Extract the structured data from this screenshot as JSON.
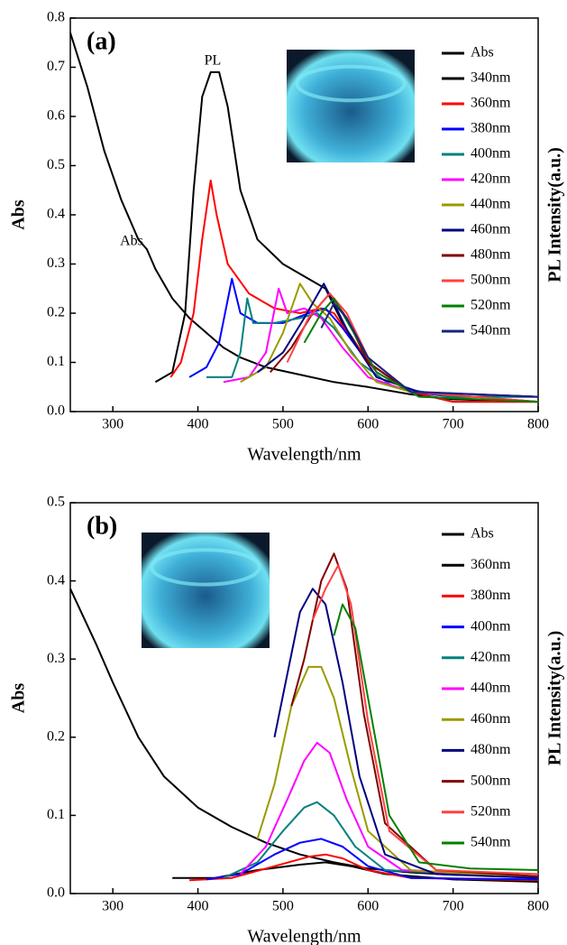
{
  "chart_data": [
    {
      "type": "line",
      "panel_label": "(a)",
      "xlabel": "Wavelength/nm",
      "ylabel": "Abs",
      "y2label": "PL Intensity(a.u.)",
      "annotations": [
        "PL",
        "Abs"
      ],
      "xlim": [
        250,
        800
      ],
      "xticks": [
        300,
        400,
        500,
        600,
        700,
        800
      ],
      "ylim": [
        0,
        0.8
      ],
      "yticks": [
        {
          "value": 0,
          "label": "0.0"
        },
        0.1,
        0.2,
        0.3,
        0.4,
        0.5,
        0.6,
        0.7,
        0.8
      ],
      "series": [
        {
          "name": "Abs",
          "color": "#000000",
          "x": [
            250,
            270,
            290,
            310,
            330,
            340,
            350,
            370,
            390,
            410,
            430,
            450,
            480,
            520,
            560,
            600,
            650,
            700,
            800
          ],
          "values": [
            0.77,
            0.66,
            0.53,
            0.43,
            0.35,
            0.33,
            0.29,
            0.23,
            0.19,
            0.16,
            0.13,
            0.11,
            0.09,
            0.075,
            0.06,
            0.05,
            0.035,
            0.025,
            0.02
          ]
        },
        {
          "name": "340nm",
          "color": "#000000",
          "x": [
            350,
            370,
            385,
            395,
            405,
            415,
            425,
            435,
            450,
            470,
            500,
            530,
            550,
            570,
            600,
            650,
            700,
            800
          ],
          "values": [
            0.06,
            0.08,
            0.2,
            0.45,
            0.64,
            0.69,
            0.69,
            0.62,
            0.45,
            0.35,
            0.3,
            0.27,
            0.25,
            0.18,
            0.1,
            0.04,
            0.02,
            0.02
          ]
        },
        {
          "name": "360nm",
          "color": "#ff0000",
          "x": [
            368,
            380,
            395,
            405,
            415,
            422,
            435,
            460,
            490,
            520,
            545,
            560,
            580,
            610,
            650,
            700,
            800
          ],
          "values": [
            0.07,
            0.1,
            0.2,
            0.35,
            0.47,
            0.4,
            0.3,
            0.24,
            0.21,
            0.2,
            0.21,
            0.2,
            0.15,
            0.08,
            0.04,
            0.02,
            0.02
          ]
        },
        {
          "name": "380nm",
          "color": "#0000ff",
          "x": [
            390,
            410,
            425,
            440,
            450,
            470,
            500,
            530,
            550,
            570,
            600,
            650,
            700,
            800
          ],
          "values": [
            0.07,
            0.09,
            0.14,
            0.27,
            0.2,
            0.18,
            0.18,
            0.2,
            0.21,
            0.17,
            0.1,
            0.04,
            0.03,
            0.03
          ]
        },
        {
          "name": "400nm",
          "color": "#008080",
          "x": [
            410,
            440,
            450,
            458,
            465,
            490,
            520,
            540,
            560,
            590,
            630,
            700,
            800
          ],
          "values": [
            0.07,
            0.07,
            0.12,
            0.23,
            0.18,
            0.18,
            0.19,
            0.2,
            0.17,
            0.1,
            0.05,
            0.03,
            0.03
          ]
        },
        {
          "name": "420nm",
          "color": "#ff00ff",
          "x": [
            430,
            460,
            480,
            495,
            505,
            525,
            545,
            570,
            600,
            650,
            800
          ],
          "values": [
            0.06,
            0.07,
            0.12,
            0.25,
            0.2,
            0.21,
            0.19,
            0.13,
            0.07,
            0.04,
            0.03
          ]
        },
        {
          "name": "440nm",
          "color": "#9a9a00",
          "x": [
            450,
            480,
            500,
            520,
            535,
            555,
            580,
            610,
            650,
            800
          ],
          "values": [
            0.06,
            0.09,
            0.16,
            0.26,
            0.22,
            0.19,
            0.12,
            0.06,
            0.04,
            0.03
          ]
        },
        {
          "name": "460nm",
          "color": "#000080",
          "x": [
            470,
            500,
            525,
            548,
            560,
            580,
            610,
            660,
            800
          ],
          "values": [
            0.08,
            0.12,
            0.19,
            0.26,
            0.22,
            0.15,
            0.07,
            0.04,
            0.03
          ]
        },
        {
          "name": "480nm",
          "color": "#800000",
          "x": [
            485,
            510,
            535,
            555,
            575,
            600,
            650,
            800
          ],
          "values": [
            0.08,
            0.13,
            0.2,
            0.24,
            0.19,
            0.1,
            0.04,
            0.02
          ]
        },
        {
          "name": "500nm",
          "color": "#ff4040",
          "x": [
            505,
            530,
            555,
            575,
            600,
            650,
            800
          ],
          "values": [
            0.1,
            0.19,
            0.24,
            0.2,
            0.11,
            0.04,
            0.02
          ]
        },
        {
          "name": "520nm",
          "color": "#008000",
          "x": [
            525,
            545,
            560,
            580,
            610,
            660,
            800
          ],
          "values": [
            0.14,
            0.2,
            0.23,
            0.17,
            0.08,
            0.03,
            0.02
          ]
        },
        {
          "name": "540nm",
          "color": "#1a237e",
          "x": [
            545,
            560,
            575,
            600,
            650,
            800
          ],
          "values": [
            0.17,
            0.22,
            0.19,
            0.11,
            0.04,
            0.03
          ]
        }
      ]
    },
    {
      "type": "line",
      "panel_label": "(b)",
      "xlabel": "Wavelength/nm",
      "ylabel": "Abs",
      "y2label": "PL Intensity(a.u.)",
      "xlim": [
        250,
        800
      ],
      "xticks": [
        300,
        400,
        500,
        600,
        700,
        800
      ],
      "ylim": [
        0,
        0.5
      ],
      "yticks": [
        {
          "value": 0,
          "label": "0.0"
        },
        0.1,
        0.2,
        0.3,
        0.4,
        0.5
      ],
      "series": [
        {
          "name": "Abs",
          "color": "#000000",
          "x": [
            250,
            280,
            300,
            330,
            360,
            400,
            440,
            480,
            520,
            560,
            600,
            650,
            700,
            800
          ],
          "values": [
            0.39,
            0.32,
            0.27,
            0.2,
            0.15,
            0.11,
            0.085,
            0.065,
            0.05,
            0.04,
            0.032,
            0.027,
            0.024,
            0.022
          ]
        },
        {
          "name": "360nm",
          "color": "#000000",
          "x": [
            370,
            420,
            470,
            520,
            550,
            580,
            620,
            700,
            800
          ],
          "values": [
            0.02,
            0.02,
            0.03,
            0.037,
            0.04,
            0.035,
            0.025,
            0.018,
            0.015
          ]
        },
        {
          "name": "380nm",
          "color": "#ff0000",
          "x": [
            390,
            440,
            490,
            530,
            550,
            570,
            600,
            650,
            800
          ],
          "values": [
            0.017,
            0.02,
            0.035,
            0.047,
            0.05,
            0.045,
            0.03,
            0.02,
            0.017
          ]
        },
        {
          "name": "400nm",
          "color": "#0000ff",
          "x": [
            410,
            450,
            490,
            520,
            545,
            570,
            600,
            650,
            800
          ],
          "values": [
            0.018,
            0.025,
            0.05,
            0.065,
            0.07,
            0.06,
            0.035,
            0.02,
            0.018
          ]
        },
        {
          "name": "420nm",
          "color": "#008080",
          "x": [
            430,
            470,
            500,
            525,
            540,
            560,
            585,
            620,
            800
          ],
          "values": [
            0.02,
            0.04,
            0.08,
            0.11,
            0.117,
            0.1,
            0.06,
            0.03,
            0.02
          ]
        },
        {
          "name": "440nm",
          "color": "#ff00ff",
          "x": [
            450,
            480,
            505,
            525,
            540,
            555,
            575,
            600,
            640,
            800
          ],
          "values": [
            0.025,
            0.06,
            0.12,
            0.17,
            0.193,
            0.18,
            0.12,
            0.06,
            0.03,
            0.02
          ]
        },
        {
          "name": "460nm",
          "color": "#9a9a00",
          "x": [
            470,
            490,
            510,
            530,
            545,
            560,
            580,
            600,
            650,
            800
          ],
          "values": [
            0.07,
            0.14,
            0.24,
            0.29,
            0.29,
            0.25,
            0.16,
            0.08,
            0.03,
            0.02
          ]
        },
        {
          "name": "480nm",
          "color": "#000080",
          "x": [
            490,
            505,
            520,
            535,
            550,
            570,
            590,
            620,
            680,
            800
          ],
          "values": [
            0.2,
            0.28,
            0.36,
            0.39,
            0.37,
            0.27,
            0.15,
            0.05,
            0.025,
            0.02
          ]
        },
        {
          "name": "500nm",
          "color": "#800000",
          "x": [
            510,
            525,
            545,
            560,
            575,
            595,
            620,
            680,
            800
          ],
          "values": [
            0.24,
            0.3,
            0.4,
            0.435,
            0.39,
            0.23,
            0.09,
            0.03,
            0.022
          ]
        },
        {
          "name": "520nm",
          "color": "#ff4040",
          "x": [
            535,
            550,
            565,
            580,
            600,
            625,
            680,
            800
          ],
          "values": [
            0.35,
            0.39,
            0.42,
            0.37,
            0.22,
            0.08,
            0.03,
            0.025
          ]
        },
        {
          "name": "540nm",
          "color": "#008000",
          "x": [
            560,
            570,
            585,
            600,
            625,
            660,
            720,
            800
          ],
          "values": [
            0.33,
            0.37,
            0.34,
            0.25,
            0.1,
            0.04,
            0.032,
            0.03
          ]
        }
      ]
    }
  ]
}
